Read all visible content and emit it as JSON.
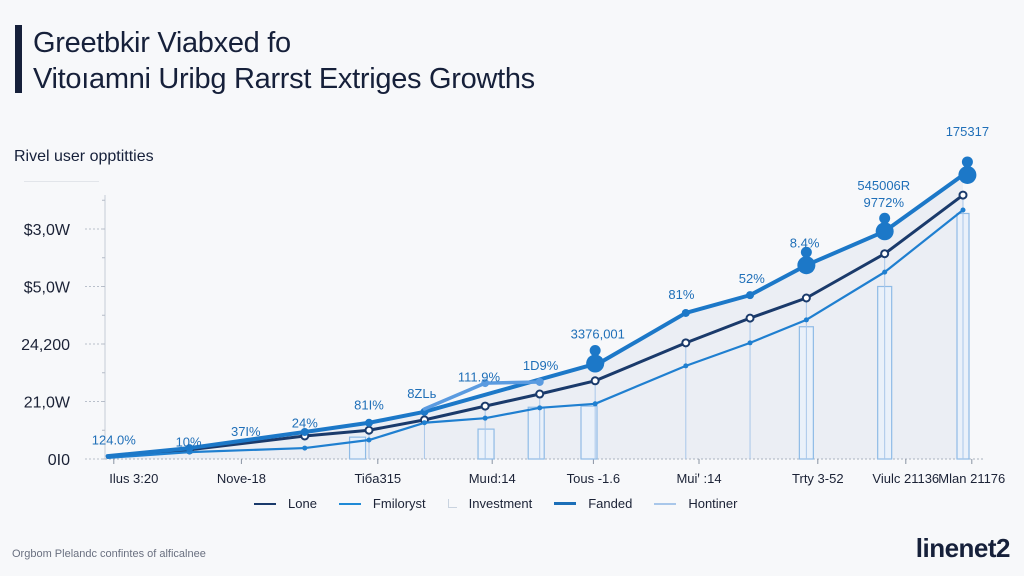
{
  "header": {
    "title_line1": "Greetbkir Viabxed fo",
    "title_line2": "Vitoıamni Uribg Rarrst Extriges Growths",
    "subtitle": "Rivel user opptitties"
  },
  "footer": {
    "note": "Orgbom Plelandc confintes of alficalnee",
    "brand": "linenet2"
  },
  "colors": {
    "navy": "#1a3a6b",
    "blue": "#1f7fd0",
    "light_blue": "#5b9be0",
    "funded": "#1c78c8",
    "bar_fill": "#eaf1fa",
    "bar_stroke": "#8fbbe6",
    "area_fill": "#e7ebf2"
  },
  "chart_data": {
    "type": "line",
    "title": "Greetbkir Viabxed fo Vitoıamni Uribg Rarrst Extriges Growths",
    "subtitle": "Rivel user opptitties",
    "xlabel": "",
    "ylabel": "",
    "grid": false,
    "legend_position": "bottom",
    "yticks": [
      {
        "value": 0,
        "label": "0I0"
      },
      {
        "value": 1,
        "label": "21,0W"
      },
      {
        "value": 2,
        "label": "24,200"
      },
      {
        "value": 3,
        "label": "$5,0W"
      },
      {
        "value": 4,
        "label": "$3,0W"
      }
    ],
    "ylim": [
      0,
      4.65
    ],
    "xlim": [
      0,
      10
    ],
    "xticks": [
      {
        "x": 0.1,
        "label": "Ilus 3:20"
      },
      {
        "x": 1.55,
        "label": "Nove-18"
      },
      {
        "x": 3.1,
        "label": "Tiбa315"
      },
      {
        "x": 4.4,
        "label": "Muıd:14"
      },
      {
        "x": 5.55,
        "label": "Tous -1.6"
      },
      {
        "x": 6.75,
        "label": "Muiꞌ :14"
      },
      {
        "x": 8.1,
        "label": "Trty 3-52"
      },
      {
        "x": 9.1,
        "label": "Viulc 21136"
      },
      {
        "x": 9.85,
        "label": "Mlan 21176"
      }
    ],
    "series": [
      {
        "name": "Lone",
        "style": "navy",
        "points": [
          [
            0.03,
            0.03
          ],
          [
            0.96,
            0.16
          ],
          [
            2.27,
            0.4
          ],
          [
            3.0,
            0.5
          ],
          [
            3.63,
            0.68
          ],
          [
            4.32,
            0.92
          ],
          [
            4.94,
            1.13
          ],
          [
            5.57,
            1.36
          ],
          [
            6.6,
            2.02
          ],
          [
            7.33,
            2.45
          ],
          [
            7.97,
            2.8
          ],
          [
            8.86,
            3.57
          ],
          [
            9.75,
            4.59
          ]
        ]
      },
      {
        "name": "Fmiloryst",
        "style": "blue",
        "points": [
          [
            0.03,
            0.02
          ],
          [
            0.96,
            0.12
          ],
          [
            2.27,
            0.19
          ],
          [
            3.0,
            0.33
          ],
          [
            3.63,
            0.63
          ],
          [
            4.32,
            0.71
          ],
          [
            4.94,
            0.89
          ],
          [
            5.57,
            0.96
          ],
          [
            6.6,
            1.62
          ],
          [
            7.33,
            2.02
          ],
          [
            7.97,
            2.42
          ],
          [
            8.86,
            3.25
          ],
          [
            9.75,
            4.33
          ]
        ]
      },
      {
        "name": "Fanded",
        "style": "funded",
        "points": [
          [
            0.03,
            0.05
          ],
          [
            0.96,
            0.19
          ],
          [
            2.27,
            0.47
          ],
          [
            3.0,
            0.63
          ],
          [
            3.63,
            0.82
          ],
          [
            5.63,
            1.68
          ],
          [
            6.6,
            2.54
          ],
          [
            7.33,
            2.85
          ],
          [
            7.97,
            3.37
          ],
          [
            8.86,
            3.96
          ],
          [
            9.75,
            4.94
          ]
        ]
      },
      {
        "name": "Hontiner",
        "style": "light_blue",
        "points": [
          [
            3.63,
            0.87
          ],
          [
            4.32,
            1.32
          ],
          [
            4.94,
            1.34
          ]
        ]
      }
    ],
    "bars": {
      "name": "Investment",
      "values": [
        [
          2.87,
          0.38
        ],
        [
          4.33,
          0.52
        ],
        [
          4.9,
          0.9
        ],
        [
          5.5,
          0.92
        ],
        [
          7.97,
          2.3
        ],
        [
          8.86,
          3.0
        ],
        [
          9.75,
          4.27
        ]
      ]
    },
    "data_labels": [
      {
        "x": 0.1,
        "y": 0.25,
        "text": "124.0%"
      },
      {
        "x": 0.95,
        "y": 0.22,
        "text": "10%"
      },
      {
        "x": 1.6,
        "y": 0.4,
        "text": "37I%"
      },
      {
        "x": 2.27,
        "y": 0.55,
        "text": "24%"
      },
      {
        "x": 3.0,
        "y": 0.86,
        "text": "81I%"
      },
      {
        "x": 3.6,
        "y": 1.06,
        "text": "8ZLь"
      },
      {
        "x": 4.25,
        "y": 1.35,
        "text": "111.9%"
      },
      {
        "x": 4.95,
        "y": 1.55,
        "text": "1D9%"
      },
      {
        "x": 5.6,
        "y": 2.1,
        "text": "3376,001"
      },
      {
        "x": 6.55,
        "y": 2.78,
        "text": "81%"
      },
      {
        "x": 7.35,
        "y": 3.06,
        "text": "52%"
      },
      {
        "x": 7.95,
        "y": 3.68,
        "text": "8.4%"
      },
      {
        "x": 8.85,
        "y": 4.38,
        "text": "9772%"
      },
      {
        "x": 8.85,
        "y": 4.68,
        "text": "545006R"
      },
      {
        "x": 9.8,
        "y": 5.62,
        "text": "175317"
      }
    ],
    "highlight_markers": [
      {
        "x": 5.57,
        "y": 1.66,
        "series": "Fanded"
      },
      {
        "x": 7.97,
        "y": 3.37,
        "series": "Fanded"
      },
      {
        "x": 8.86,
        "y": 3.96,
        "series": "Fanded"
      },
      {
        "x": 9.8,
        "y": 4.94,
        "series": "Fanded"
      }
    ]
  },
  "legend": [
    {
      "label": "Lone",
      "color": "#1a3a6b"
    },
    {
      "label": "Fmiloryst",
      "color": "#1f8ad6"
    },
    {
      "label": "Investment",
      "color": "#c9d3df"
    },
    {
      "label": "Fanded",
      "color": "#1c6fb8"
    },
    {
      "label": "Hontiner",
      "color": "#a9c7ea"
    }
  ]
}
